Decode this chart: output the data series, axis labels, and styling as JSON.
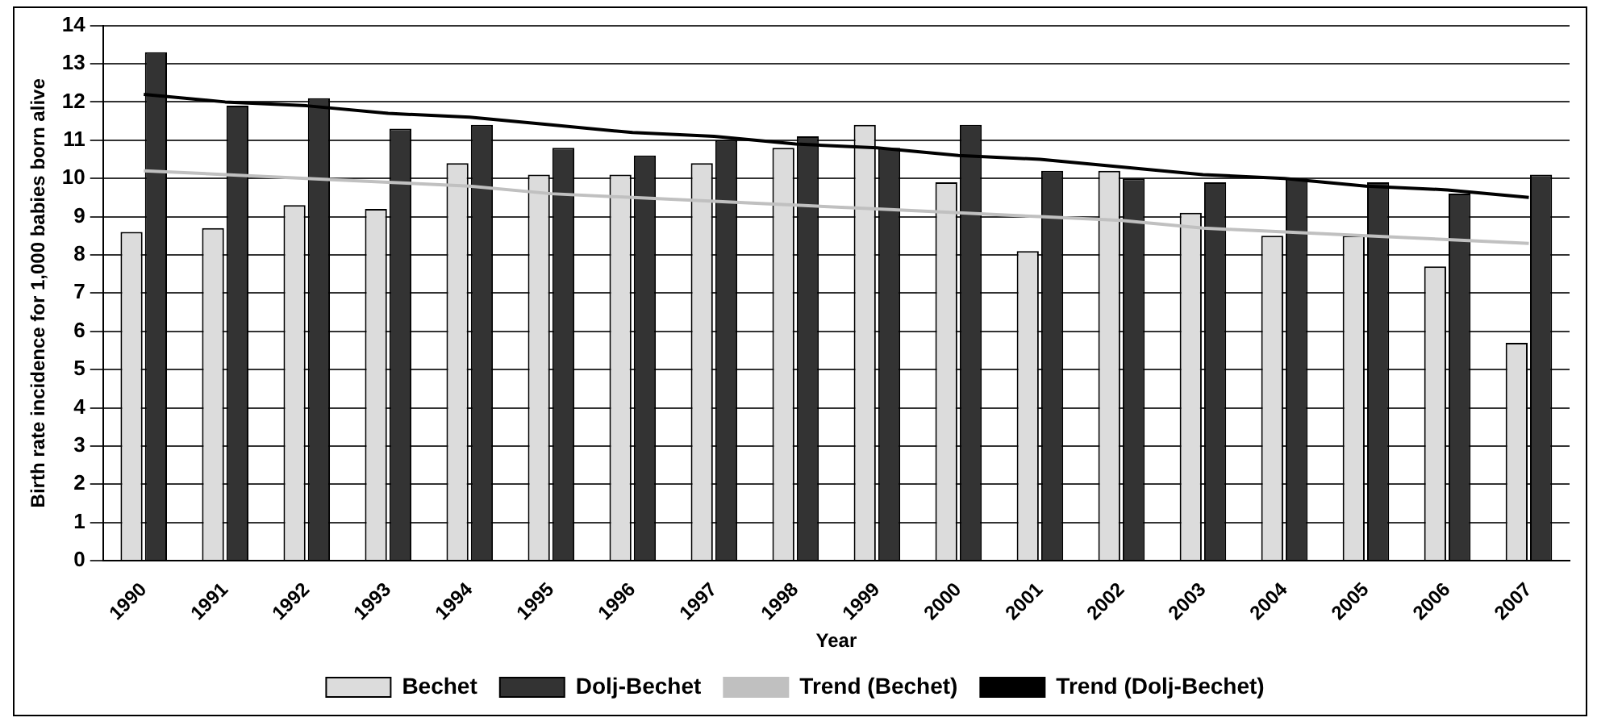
{
  "chart_data": {
    "type": "bar",
    "xlabel": "Year",
    "ylabel": "Birth rate incidence for 1,000 babies born alive",
    "categories": [
      "1990",
      "1991",
      "1992",
      "1993",
      "1994",
      "1995",
      "1996",
      "1997",
      "1998",
      "1999",
      "2000",
      "2001",
      "2002",
      "2003",
      "2004",
      "2005",
      "2006",
      "2007"
    ],
    "series": [
      {
        "name": "Bechet",
        "color": "#dcdcdc",
        "values": [
          8.6,
          8.7,
          9.3,
          9.2,
          10.4,
          10.1,
          10.1,
          10.4,
          10.8,
          11.4,
          9.9,
          8.1,
          10.2,
          9.1,
          8.5,
          8.5,
          7.7,
          5.7
        ]
      },
      {
        "name": "Dolj-Bechet",
        "color": "#333333",
        "values": [
          13.3,
          11.9,
          12.1,
          11.3,
          11.4,
          10.8,
          10.6,
          11.0,
          11.1,
          10.8,
          11.4,
          10.2,
          10.0,
          9.9,
          10.0,
          9.9,
          9.6,
          10.1
        ]
      },
      {
        "name": "Trend (Bechet)",
        "type": "line",
        "color": "#c0c0c0",
        "values": [
          10.2,
          10.1,
          10.0,
          9.9,
          9.8,
          9.6,
          9.5,
          9.4,
          9.3,
          9.2,
          9.1,
          9.0,
          8.9,
          8.7,
          8.6,
          8.5,
          8.4,
          8.3
        ]
      },
      {
        "name": "Trend (Dolj-Bechet)",
        "type": "line",
        "color": "#000000",
        "values": [
          12.2,
          12.0,
          11.9,
          11.7,
          11.6,
          11.4,
          11.2,
          11.1,
          10.9,
          10.8,
          10.6,
          10.5,
          10.3,
          10.1,
          10.0,
          9.8,
          9.7,
          9.5
        ]
      }
    ],
    "ylim": [
      0,
      14
    ],
    "yticks": [
      0,
      1,
      2,
      3,
      4,
      5,
      6,
      7,
      8,
      9,
      10,
      11,
      12,
      13,
      14
    ],
    "grid": "y",
    "legend": "bottom",
    "marker": "none",
    "line_style": "solid"
  }
}
